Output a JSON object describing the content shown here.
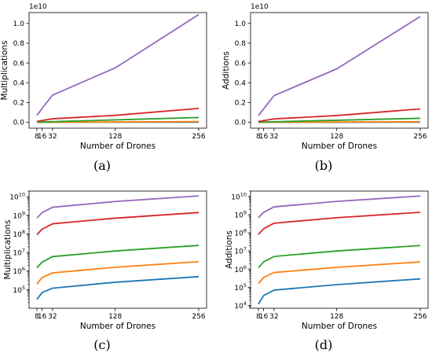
{
  "figure": {
    "panel_labels": [
      "(a)",
      "(b)",
      "(c)",
      "(d)"
    ]
  },
  "chart_data": [
    {
      "panel": "(a)",
      "type": "line",
      "scale": "linear",
      "offset_text": "1e10",
      "x": [
        8,
        16,
        32,
        128,
        256
      ],
      "xticks": [
        "8",
        "16",
        "32",
        "128",
        "256"
      ],
      "xlabel": "Number of Drones",
      "ylabel": "Multiplications",
      "xlim": [
        -4,
        268
      ],
      "ylim": [
        -0.06,
        1.11
      ],
      "yticks": [
        0.0,
        0.2,
        0.4,
        0.6,
        0.8,
        1.0
      ],
      "ytick_labels": [
        "0.0",
        "0.2",
        "0.4",
        "0.6",
        "0.8",
        "1.0"
      ],
      "grid": false,
      "series": [
        {
          "color": "#1f77b4",
          "values": [
            3e-05,
            6e-05,
            0.00012,
            0.0005,
            0.0012
          ]
        },
        {
          "color": "#ff7f0e",
          "values": [
            0.0002,
            0.0004,
            0.0008,
            0.0032,
            0.0065
          ]
        },
        {
          "color": "#2ca02c",
          "values": [
            0.0015,
            0.003,
            0.006,
            0.024,
            0.048
          ]
        },
        {
          "color": "#d62728",
          "values": [
            0.009,
            0.018,
            0.035,
            0.07,
            0.14
          ]
        },
        {
          "color": "#9467bd",
          "values": [
            0.07,
            0.14,
            0.275,
            0.55,
            1.09
          ]
        }
      ]
    },
    {
      "panel": "(b)",
      "type": "line",
      "scale": "linear",
      "offset_text": "1e10",
      "x": [
        8,
        16,
        32,
        128,
        256
      ],
      "xticks": [
        "8",
        "16",
        "32",
        "128",
        "256"
      ],
      "xlabel": "Number of Drones",
      "ylabel": "Additions",
      "xlim": [
        -4,
        268
      ],
      "ylim": [
        -0.06,
        1.11
      ],
      "yticks": [
        0.0,
        0.2,
        0.4,
        0.6,
        0.8,
        1.0
      ],
      "ytick_labels": [
        "0.0",
        "0.2",
        "0.4",
        "0.6",
        "0.8",
        "1.0"
      ],
      "grid": false,
      "series": [
        {
          "color": "#1f77b4",
          "values": [
            1e-05,
            3e-05,
            7e-05,
            0.0003,
            0.0006
          ]
        },
        {
          "color": "#ff7f0e",
          "values": [
            0.0001,
            0.0003,
            0.0006,
            0.0024,
            0.0048
          ]
        },
        {
          "color": "#2ca02c",
          "values": [
            0.0012,
            0.0025,
            0.005,
            0.02,
            0.04
          ]
        },
        {
          "color": "#d62728",
          "values": [
            0.008,
            0.017,
            0.034,
            0.068,
            0.135
          ]
        },
        {
          "color": "#9467bd",
          "values": [
            0.068,
            0.135,
            0.27,
            0.54,
            1.07
          ]
        }
      ]
    },
    {
      "panel": "(c)",
      "type": "line",
      "scale": "log",
      "x": [
        8,
        16,
        32,
        128,
        256
      ],
      "xticks": [
        "8",
        "16",
        "32",
        "128",
        "256"
      ],
      "xlabel": "Number of Drones",
      "ylabel": "Multiplications",
      "xlim": [
        -4,
        268
      ],
      "ylim": [
        10000,
        20000000000
      ],
      "ytick_exponents": [
        5,
        6,
        7,
        8,
        9,
        10
      ],
      "grid": false,
      "series": [
        {
          "color": "#1f77b4",
          "values": [
            30000,
            70000,
            120000,
            250000,
            500000
          ]
        },
        {
          "color": "#ff7f0e",
          "values": [
            200000,
            450000,
            800000,
            1600000,
            3200000
          ]
        },
        {
          "color": "#2ca02c",
          "values": [
            1500000,
            3000000,
            6000000,
            12000000,
            24000000
          ]
        },
        {
          "color": "#d62728",
          "values": [
            90000000,
            180000000,
            350000000,
            700000000,
            1400000000
          ]
        },
        {
          "color": "#9467bd",
          "values": [
            700000000,
            1400000000,
            2700000000,
            5500000000,
            11000000000
          ]
        }
      ]
    },
    {
      "panel": "(d)",
      "type": "line",
      "scale": "log",
      "x": [
        8,
        16,
        32,
        128,
        256
      ],
      "xticks": [
        "8",
        "16",
        "32",
        "128",
        "256"
      ],
      "xlabel": "Number of Drones",
      "ylabel": "Additions",
      "xlim": [
        -4,
        268
      ],
      "ylim": [
        7000,
        20000000000
      ],
      "ytick_exponents": [
        4,
        5,
        6,
        7,
        8,
        9,
        10
      ],
      "grid": false,
      "series": [
        {
          "color": "#1f77b4",
          "values": [
            12000,
            35000,
            70000,
            140000,
            290000
          ]
        },
        {
          "color": "#ff7f0e",
          "values": [
            160000,
            350000,
            650000,
            1250000,
            2500000
          ]
        },
        {
          "color": "#2ca02c",
          "values": [
            1200000,
            2500000,
            5000000,
            10000000,
            20000000
          ]
        },
        {
          "color": "#d62728",
          "values": [
            80000000,
            170000000,
            340000000,
            680000000,
            1350000000
          ]
        },
        {
          "color": "#9467bd",
          "values": [
            680000000,
            1350000000,
            2700000000,
            5400000000,
            10700000000
          ]
        }
      ]
    }
  ]
}
